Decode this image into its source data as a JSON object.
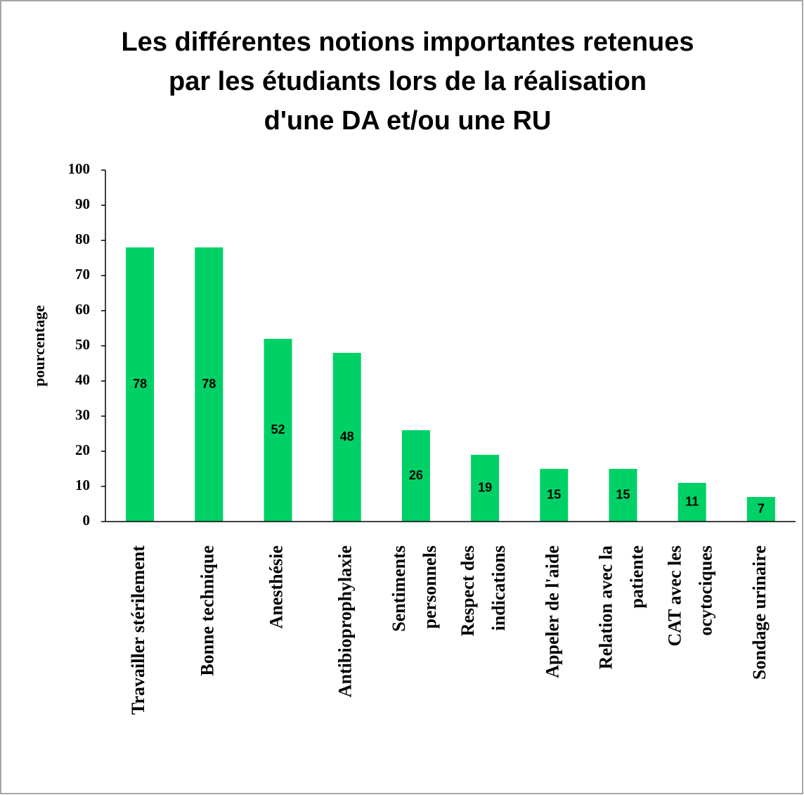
{
  "chart_data": {
    "type": "bar",
    "title": [
      "Les différentes notions importantes retenues",
      "par les étudiants lors de la réalisation",
      "d'une DA et/ou une RU"
    ],
    "y_label": "pourcentage",
    "categories": [
      [
        "Travailler stérilement"
      ],
      [
        "Bonne technique"
      ],
      [
        "Anesthésie"
      ],
      [
        "Antibioprophylaxie"
      ],
      [
        "Sentiments",
        "personnels"
      ],
      [
        "Respect des",
        "indications"
      ],
      [
        "Appeler de l'aide"
      ],
      [
        "Relation avec la",
        "patiente"
      ],
      [
        "CAT avec les",
        "ocytociques"
      ],
      [
        "Sondage urinaire"
      ]
    ],
    "values": [
      78,
      78,
      52,
      48,
      26,
      19,
      15,
      15,
      11,
      7
    ],
    "color": "#00d166",
    "ylim": [
      0,
      100
    ],
    "yticks": [
      0,
      10,
      20,
      30,
      40,
      50,
      60,
      70,
      80,
      90,
      100
    ],
    "grid": false
  }
}
